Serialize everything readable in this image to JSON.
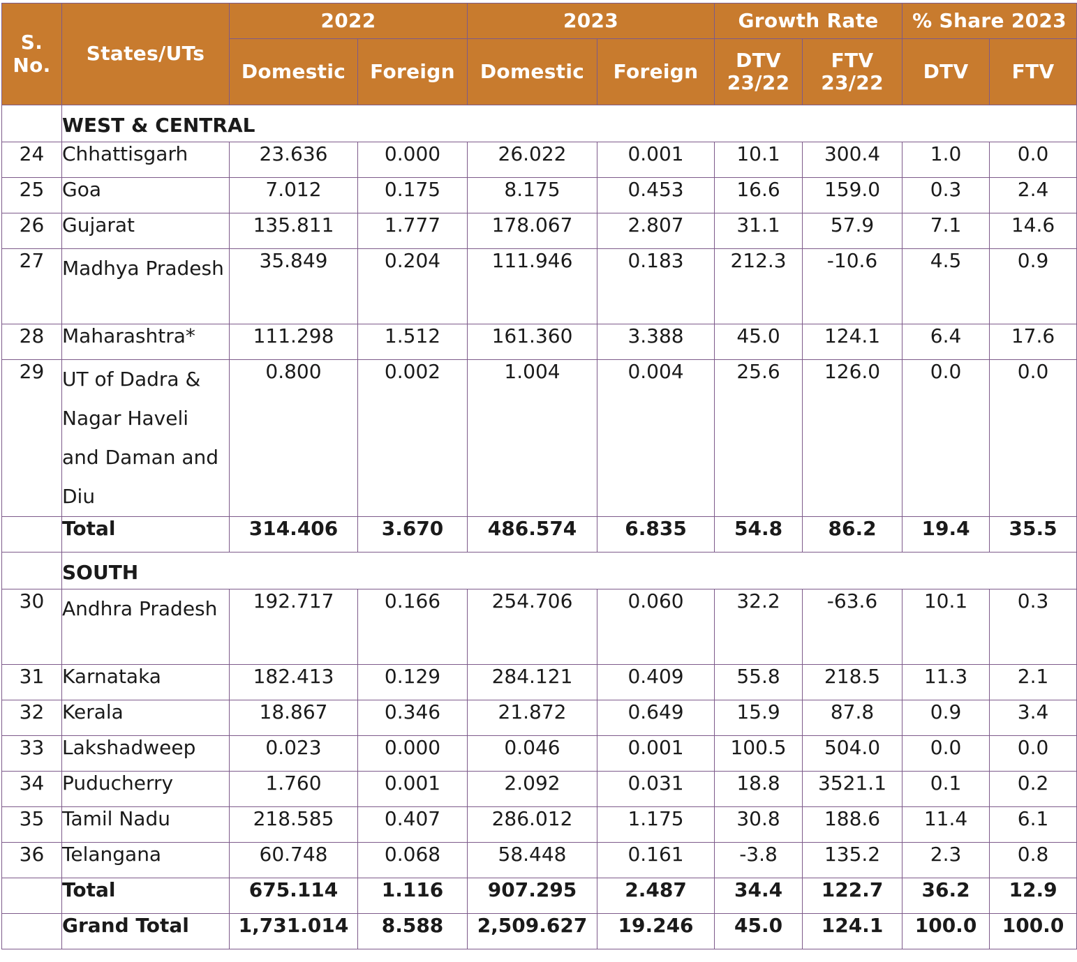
{
  "header": {
    "sno": "S. No.",
    "states": "States/UTs",
    "y2022": "2022",
    "y2023": "2023",
    "growth": "Growth Rate",
    "share": "% Share 2023",
    "domestic": "Domestic",
    "foreign": "Foreign",
    "dtv_23_22": "DTV 23/22",
    "ftv_23_22": "FTV 23/22",
    "dtv": "DTV",
    "ftv": "FTV"
  },
  "sections": [
    {
      "name": "WEST & CENTRAL",
      "rows": [
        {
          "sno": "24",
          "state": "Chhattisgarh",
          "d22": "23.636",
          "f22": "0.000",
          "d23": "26.022",
          "f23": "0.001",
          "gd": "10.1",
          "gf": "300.4",
          "sd": "1.0",
          "sf": "0.0"
        },
        {
          "sno": "25",
          "state": "Goa",
          "d22": "7.012",
          "f22": "0.175",
          "d23": "8.175",
          "f23": "0.453",
          "gd": "16.6",
          "gf": "159.0",
          "sd": "0.3",
          "sf": "2.4"
        },
        {
          "sno": "26",
          "state": "Gujarat",
          "d22": "135.811",
          "f22": "1.777",
          "d23": "178.067",
          "f23": "2.807",
          "gd": "31.1",
          "gf": "57.9",
          "sd": "7.1",
          "sf": "14.6"
        },
        {
          "sno": "27",
          "state": "Madhya Pradesh",
          "d22": "35.849",
          "f22": "0.204",
          "d23": "111.946",
          "f23": "0.183",
          "gd": "212.3",
          "gf": "-10.6",
          "sd": "4.5",
          "sf": "0.9"
        },
        {
          "sno": "28",
          "state": "Maharashtra*",
          "d22": "111.298",
          "f22": "1.512",
          "d23": "161.360",
          "f23": "3.388",
          "gd": "45.0",
          "gf": "124.1",
          "sd": "6.4",
          "sf": "17.6"
        },
        {
          "sno": "29",
          "state": "UT of Dadra & Nagar Haveli and Daman and Diu",
          "d22": "0.800",
          "f22": "0.002",
          "d23": "1.004",
          "f23": "0.004",
          "gd": "25.6",
          "gf": "126.0",
          "sd": "0.0",
          "sf": "0.0"
        }
      ],
      "total": {
        "label": "Total",
        "d22": "314.406",
        "f22": "3.670",
        "d23": "486.574",
        "f23": "6.835",
        "gd": "54.8",
        "gf": "86.2",
        "sd": "19.4",
        "sf": "35.5"
      }
    },
    {
      "name": "SOUTH",
      "rows": [
        {
          "sno": "30",
          "state": "Andhra Pradesh",
          "d22": "192.717",
          "f22": "0.166",
          "d23": "254.706",
          "f23": "0.060",
          "gd": "32.2",
          "gf": "-63.6",
          "sd": "10.1",
          "sf": "0.3"
        },
        {
          "sno": "31",
          "state": "Karnataka",
          "d22": "182.413",
          "f22": "0.129",
          "d23": "284.121",
          "f23": "0.409",
          "gd": "55.8",
          "gf": "218.5",
          "sd": "11.3",
          "sf": "2.1"
        },
        {
          "sno": "32",
          "state": "Kerala",
          "d22": "18.867",
          "f22": "0.346",
          "d23": "21.872",
          "f23": "0.649",
          "gd": "15.9",
          "gf": "87.8",
          "sd": "0.9",
          "sf": "3.4"
        },
        {
          "sno": "33",
          "state": "Lakshadweep",
          "d22": "0.023",
          "f22": "0.000",
          "d23": "0.046",
          "f23": "0.001",
          "gd": "100.5",
          "gf": "504.0",
          "sd": "0.0",
          "sf": "0.0"
        },
        {
          "sno": "34",
          "state": "Puducherry",
          "d22": "1.760",
          "f22": "0.001",
          "d23": "2.092",
          "f23": "0.031",
          "gd": "18.8",
          "gf": "3521.1",
          "sd": "0.1",
          "sf": "0.2"
        },
        {
          "sno": "35",
          "state": "Tamil Nadu",
          "d22": "218.585",
          "f22": "0.407",
          "d23": "286.012",
          "f23": "1.175",
          "gd": "30.8",
          "gf": "188.6",
          "sd": "11.4",
          "sf": "6.1"
        },
        {
          "sno": "36",
          "state": "Telangana",
          "d22": "60.748",
          "f22": "0.068",
          "d23": "58.448",
          "f23": "0.161",
          "gd": "-3.8",
          "gf": "135.2",
          "sd": "2.3",
          "sf": "0.8"
        }
      ],
      "total": {
        "label": "Total",
        "d22": "675.114",
        "f22": "1.116",
        "d23": "907.295",
        "f23": "2.487",
        "gd": "34.4",
        "gf": "122.7",
        "sd": "36.2",
        "sf": "12.9"
      }
    }
  ],
  "grand_total": {
    "label": "Grand Total",
    "d22": "1,731.014",
    "f22": "8.588",
    "d23": "2,509.627",
    "f23": "19.246",
    "gd": "45.0",
    "gf": "124.1",
    "sd": "100.0",
    "sf": "100.0"
  }
}
